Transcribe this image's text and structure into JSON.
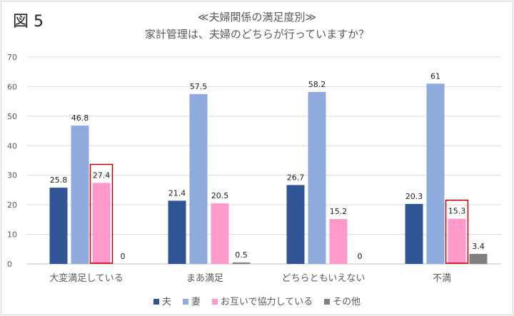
{
  "figure_label": "図 5",
  "chart_data": {
    "type": "bar",
    "title": "≪夫婦関係の満足度別≫",
    "subtitle": "家計管理は、夫婦のどちらが行っていますか？",
    "categories": [
      "大変満足している",
      "まあ満足",
      "どちらともいえない",
      "不満"
    ],
    "series": [
      {
        "name": "夫",
        "color": "#2F5597",
        "values": [
          25.8,
          21.4,
          26.7,
          20.3
        ]
      },
      {
        "name": "妻",
        "color": "#8FAADC",
        "values": [
          46.8,
          57.5,
          58.2,
          61
        ]
      },
      {
        "name": "お互いで協力している",
        "color": "#FF99CC",
        "values": [
          27.4,
          20.5,
          15.2,
          15.3
        ]
      },
      {
        "name": "その他",
        "color": "#7F7F7F",
        "values": [
          0,
          0.5,
          0,
          3.4
        ]
      }
    ],
    "highlighted": [
      {
        "series": "お互いで協力している",
        "category": "大変満足している",
        "color": "#C00000"
      },
      {
        "series": "お互いで協力している",
        "category": "不満",
        "color": "#C00000"
      }
    ],
    "ylim": [
      0,
      70
    ],
    "yticks": [
      0,
      10,
      20,
      30,
      40,
      50,
      60,
      70
    ],
    "grid": true,
    "legend": "bottom"
  }
}
